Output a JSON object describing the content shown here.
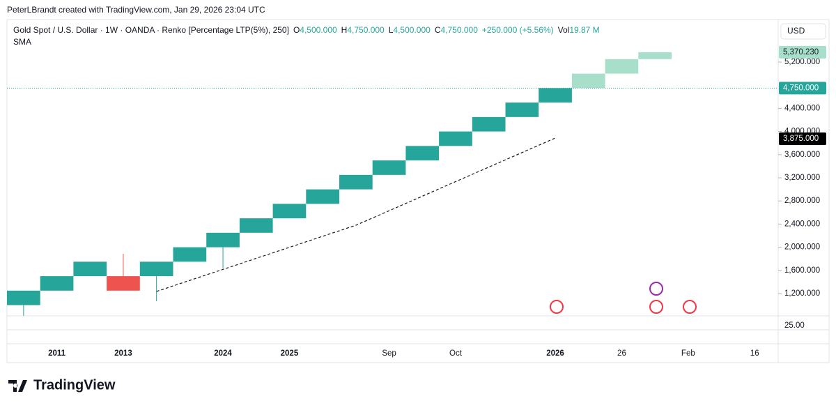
{
  "chart_data": {
    "type": "renko",
    "credit": "PeterLBrandt created with TradingView.com, Jan 29, 2026 23:04 UTC",
    "symbol": "Gold Spot / U.S. Dollar · 1W · OANDA · Renko [Percentage LTP(5%), 250]",
    "ohlc": [
      [
        "O",
        "4,500.000"
      ],
      [
        "H",
        "4,750.000"
      ],
      [
        "L",
        "4,500.000"
      ],
      [
        "C",
        "4,750.000"
      ]
    ],
    "change": "+250.000 (+5.56%)",
    "volume_key": "Vol",
    "volume": "19.87 M",
    "indicator": "SMA",
    "currency": "USD",
    "brand": "TradingView",
    "categories": [
      null,
      "2011",
      null,
      "2013",
      null,
      null,
      "2024",
      null,
      "2025",
      null,
      null,
      "Sep",
      null,
      "Oct",
      null,
      null,
      "2026",
      null,
      "26",
      null,
      "Feb",
      null,
      "16"
    ],
    "open": [
      1000,
      1250,
      1500,
      1500,
      1500,
      1750,
      2000,
      2250,
      2500,
      2750,
      3000,
      3250,
      3500,
      3750,
      4000,
      4250,
      4500,
      4750,
      5000,
      5250,
      null,
      null,
      null
    ],
    "close": [
      1250,
      1500,
      1750,
      1250,
      1750,
      2000,
      2250,
      2500,
      2750,
      3000,
      3250,
      3500,
      3750,
      4000,
      4250,
      4500,
      4750,
      5000,
      5250,
      5370.23,
      null,
      null,
      null
    ],
    "high": [
      null,
      null,
      null,
      1887,
      null,
      null,
      null,
      null,
      null,
      null,
      null,
      null,
      null,
      null,
      null,
      null,
      null,
      null,
      null,
      null,
      null,
      null,
      null
    ],
    "low": [
      800,
      null,
      null,
      null,
      1067,
      null,
      1634,
      null,
      null,
      null,
      null,
      null,
      null,
      null,
      null,
      null,
      null,
      null,
      null,
      null,
      null,
      null,
      null
    ],
    "colors": [
      "#26a69a",
      "#26a69a",
      "#26a69a",
      "#ef5350",
      "#26a69a",
      "#26a69a",
      "#26a69a",
      "#26a69a",
      "#26a69a",
      "#26a69a",
      "#26a69a",
      "#26a69a",
      "#26a69a",
      "#26a69a",
      "#26a69a",
      "#26a69a",
      "#26a69a",
      "#a8dfcb",
      "#a8dfcb",
      "#a8dfcb",
      null,
      null,
      null
    ],
    "sma": [
      null,
      null,
      null,
      null,
      1236,
      1427,
      1617,
      1808,
      1998,
      2189,
      2380,
      2631,
      2882,
      3134,
      3385,
      3636,
      3887,
      null,
      null,
      null,
      null,
      null,
      null
    ],
    "ylim": [
      814,
      5935
    ],
    "yticks": [
      {
        "value": 1200,
        "label": "1,200.000"
      },
      {
        "value": 1600,
        "label": "1,600.000"
      },
      {
        "value": 2000,
        "label": "2,000.000"
      },
      {
        "value": 2400,
        "label": "2,400.000"
      },
      {
        "value": 2800,
        "label": "2,800.000"
      },
      {
        "value": 3200,
        "label": "3,200.000"
      },
      {
        "value": 3600,
        "label": "3,600.000"
      },
      {
        "value": 4000,
        "label": "4,000.000"
      },
      {
        "value": 4400,
        "label": "4,400.000"
      },
      {
        "value": 5200,
        "label": "5,200.000"
      }
    ],
    "price_labels": [
      {
        "value": 5370.23,
        "label": "5,370.230",
        "color": "#a8dfcb",
        "text_color": "#131722"
      },
      {
        "value": 4750,
        "label": "4,750.000",
        "color": "#26a69a",
        "text_color": "#ffffff"
      },
      {
        "value": 3875,
        "label": "3,875.000",
        "color": "#000000",
        "text_color": "#ffffff"
      }
    ],
    "volume_scale_label": "25.00"
  }
}
